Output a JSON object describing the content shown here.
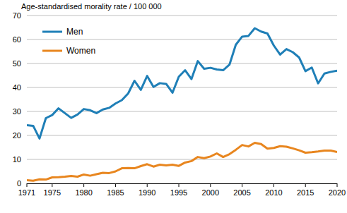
{
  "chart_data": {
    "type": "line",
    "y_label": "Age-standardised morality rate / 100 000",
    "x": [
      1971,
      1972,
      1973,
      1974,
      1975,
      1976,
      1977,
      1978,
      1979,
      1980,
      1981,
      1982,
      1983,
      1984,
      1985,
      1986,
      1987,
      1988,
      1989,
      1990,
      1991,
      1992,
      1993,
      1994,
      1995,
      1996,
      1997,
      1998,
      1999,
      2000,
      2001,
      2002,
      2003,
      2004,
      2005,
      2006,
      2007,
      2008,
      2009,
      2010,
      2011,
      2012,
      2013,
      2014,
      2015,
      2016,
      2017,
      2018,
      2019,
      2020
    ],
    "series": [
      {
        "name": "Men",
        "color": "#1f7fb7",
        "values": [
          24.3,
          24.0,
          18.7,
          27.2,
          28.5,
          31.3,
          29.3,
          27.3,
          28.7,
          31.0,
          30.5,
          29.3,
          30.8,
          31.5,
          33.3,
          34.7,
          37.5,
          42.8,
          39.0,
          44.8,
          40.2,
          41.8,
          41.5,
          37.8,
          44.5,
          47.2,
          43.5,
          51.0,
          47.8,
          48.2,
          47.5,
          47.2,
          49.5,
          57.8,
          61.2,
          61.5,
          64.7,
          63.3,
          62.5,
          57.5,
          53.7,
          56.0,
          54.7,
          52.5,
          46.8,
          48.3,
          41.7,
          45.8,
          46.5,
          47.0
        ]
      },
      {
        "name": "Women",
        "color": "#e8861f",
        "values": [
          1.3,
          1.1,
          1.7,
          1.6,
          2.5,
          2.6,
          2.8,
          3.1,
          2.8,
          3.7,
          3.2,
          3.8,
          4.4,
          4.3,
          5.0,
          6.3,
          6.4,
          6.3,
          7.2,
          8.0,
          7.0,
          7.8,
          7.5,
          7.8,
          7.3,
          8.7,
          9.3,
          11.0,
          10.5,
          11.2,
          12.5,
          11.0,
          12.2,
          14.0,
          16.0,
          15.4,
          16.9,
          16.4,
          14.5,
          14.8,
          15.5,
          15.3,
          14.6,
          13.8,
          12.8,
          13.0,
          13.3,
          13.7,
          13.7,
          13.1
        ]
      }
    ],
    "xlim": [
      1971,
      2020
    ],
    "xticks": [
      1971,
      1975,
      1980,
      1985,
      1990,
      1995,
      2000,
      2005,
      2010,
      2015,
      2020
    ],
    "ylim": [
      0,
      70
    ],
    "yticks": [
      0,
      10,
      20,
      30,
      40,
      50,
      60,
      70
    ],
    "grid": true,
    "legend": "upper left"
  }
}
